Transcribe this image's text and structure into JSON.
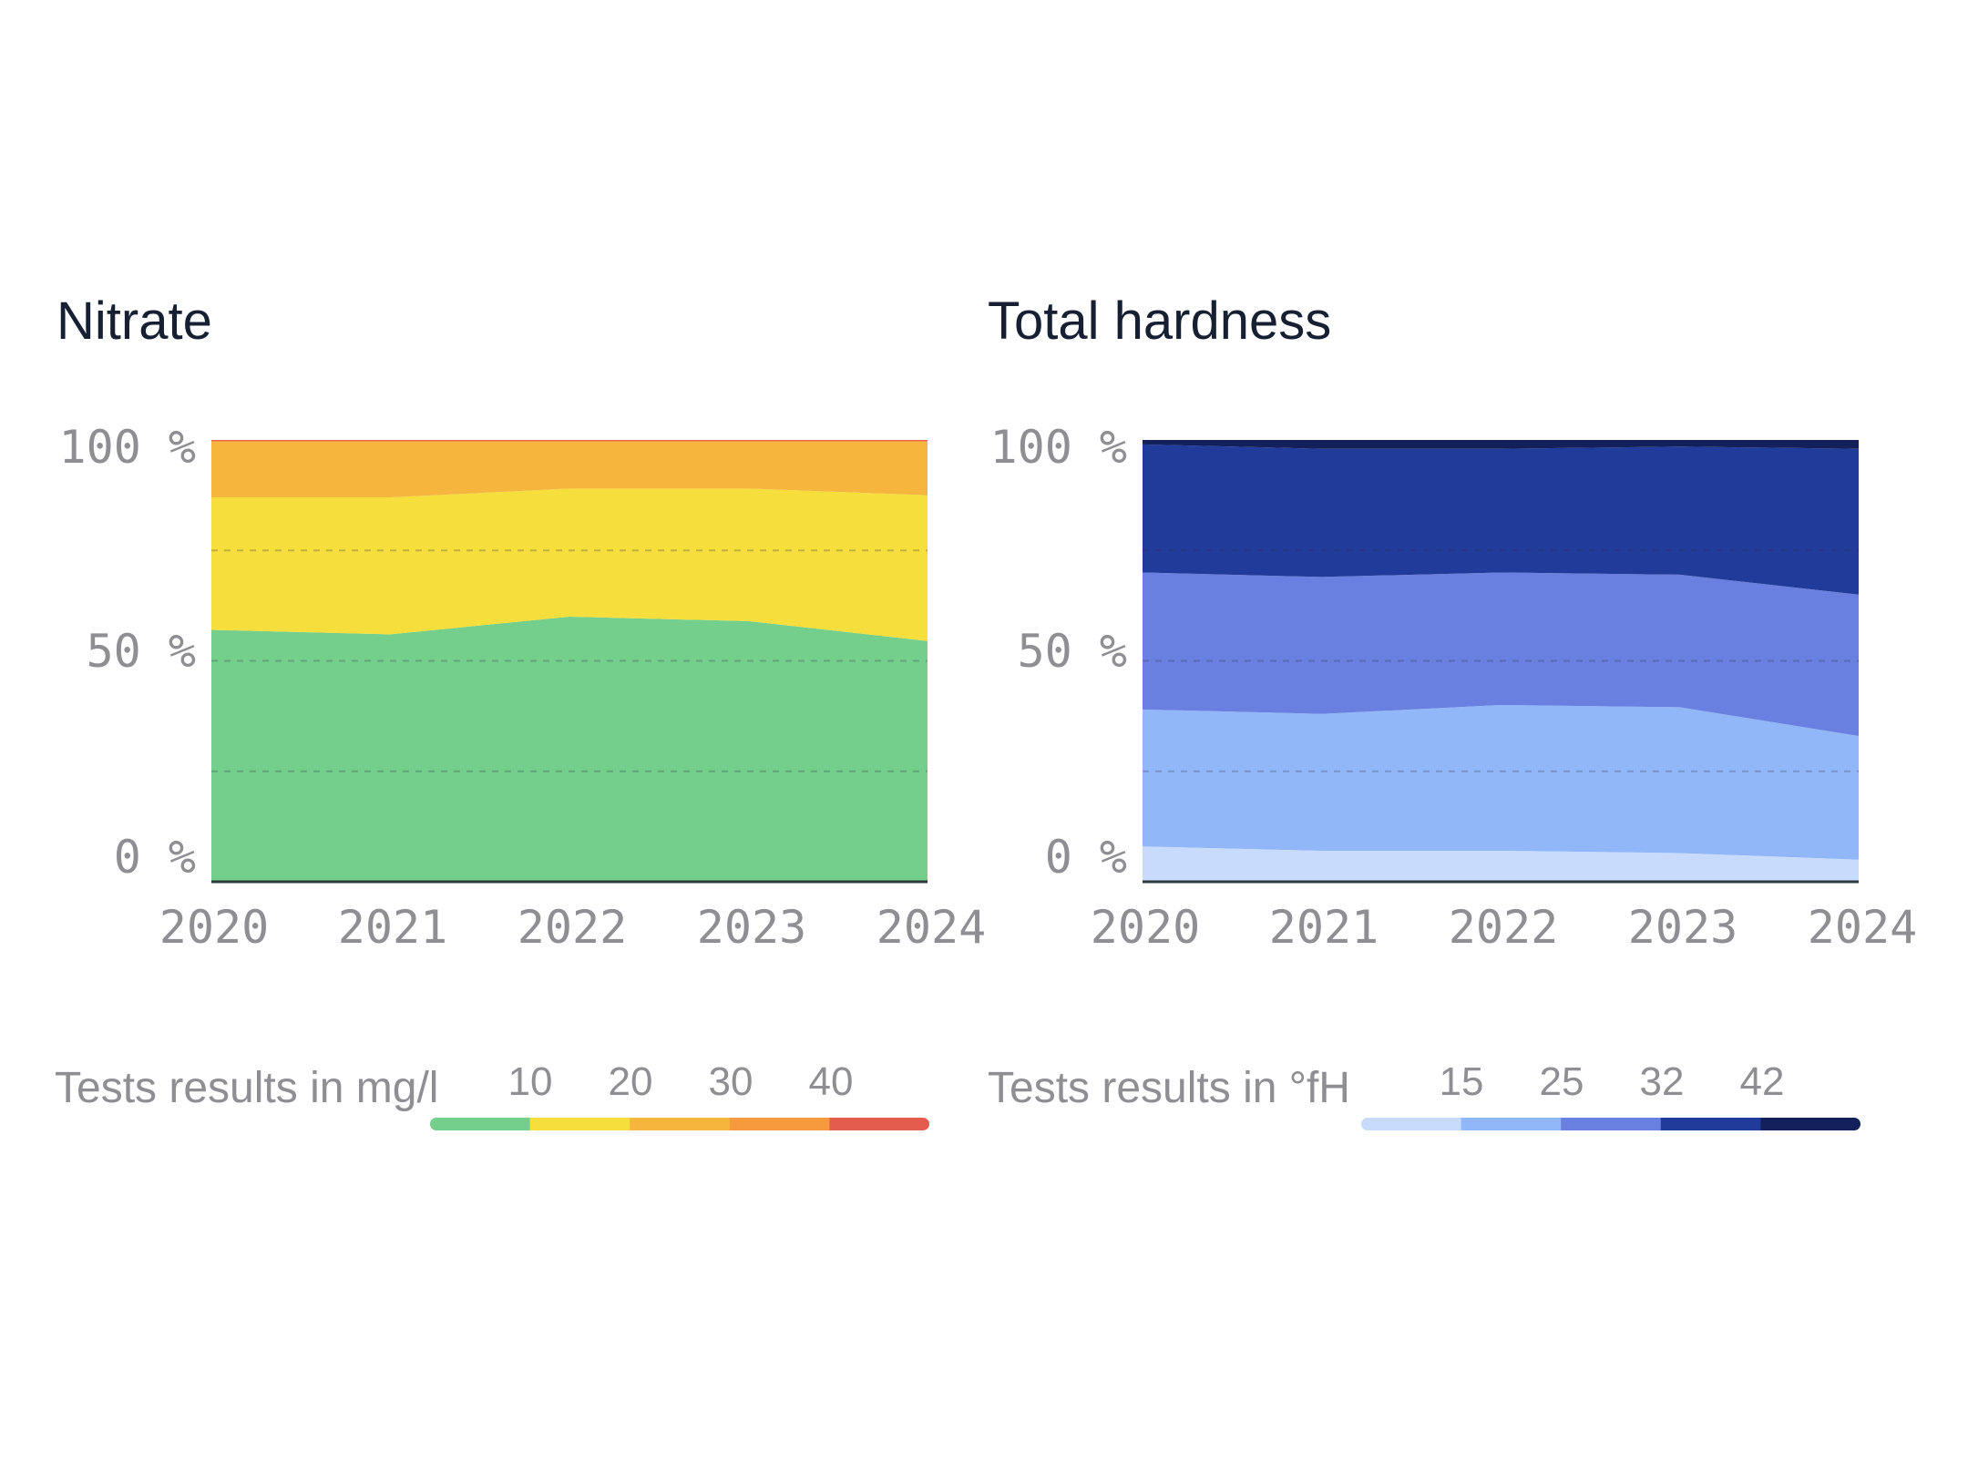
{
  "chart_data": [
    {
      "type": "area",
      "stacked": true,
      "normalized": true,
      "title": "Nitrate",
      "categories": [
        "2020",
        "2021",
        "2022",
        "2023",
        "2024"
      ],
      "y_ticks": [
        "0 %",
        "50 %",
        "100 %"
      ],
      "ylim": [
        0,
        100
      ],
      "series": [
        {
          "name": "<10",
          "color": "#73cf8b",
          "values": [
            57,
            56,
            60,
            59,
            54.5
          ]
        },
        {
          "name": "10-20",
          "color": "#f6de3d",
          "values": [
            30,
            31,
            29,
            30,
            33
          ]
        },
        {
          "name": "20-30",
          "color": "#f6b63d",
          "values": [
            12.5,
            12.5,
            10.5,
            10.5,
            12
          ]
        },
        {
          "name": "30-40",
          "color": "#f69a3d",
          "values": [
            0.3,
            0.3,
            0.3,
            0.3,
            0.3
          ]
        },
        {
          "name": ">40",
          "color": "#e45c4d",
          "values": [
            0.2,
            0.2,
            0.2,
            0.2,
            0.2
          ]
        }
      ],
      "legend": {
        "label": "Tests results in mg/l",
        "ticks": [
          "10",
          "20",
          "30",
          "40"
        ],
        "colors": [
          "#73cf8b",
          "#f6de3d",
          "#f6b63d",
          "#f69a3d",
          "#e45c4d"
        ]
      }
    },
    {
      "type": "area",
      "stacked": true,
      "normalized": true,
      "title": "Total hardness",
      "categories": [
        "2020",
        "2021",
        "2022",
        "2023",
        "2024"
      ],
      "y_ticks": [
        "0 %",
        "50 %",
        "100 %"
      ],
      "ylim": [
        0,
        100
      ],
      "series": [
        {
          "name": "<15",
          "color": "#c9dbfd",
          "values": [
            8,
            7,
            7,
            6.5,
            5
          ]
        },
        {
          "name": "15-25",
          "color": "#92b7f8",
          "values": [
            31,
            31,
            33,
            33,
            28
          ]
        },
        {
          "name": "25-32",
          "color": "#6a80e0",
          "values": [
            31,
            31,
            30,
            30,
            32
          ]
        },
        {
          "name": "32-42",
          "color": "#213b9b",
          "values": [
            29,
            29,
            28,
            29,
            33
          ]
        },
        {
          "name": ">42",
          "color": "#14205a",
          "values": [
            1,
            2,
            2,
            1.5,
            2
          ]
        }
      ],
      "legend": {
        "label": "Tests results in °fH",
        "ticks": [
          "15",
          "25",
          "32",
          "42"
        ],
        "colors": [
          "#c9dbfd",
          "#92b7f8",
          "#6a80e0",
          "#213b9b",
          "#14205a"
        ]
      }
    }
  ]
}
